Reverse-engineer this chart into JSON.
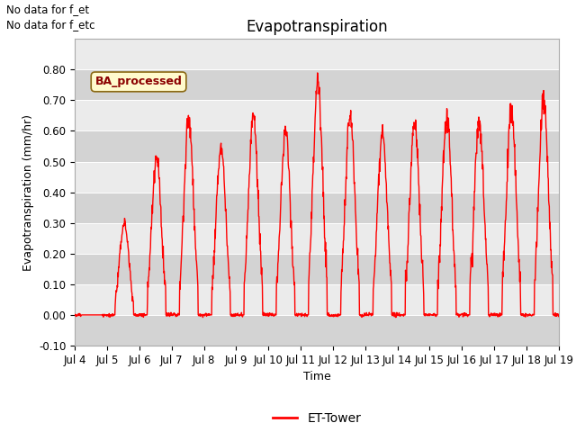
{
  "title": "Evapotranspiration",
  "xlabel": "Time",
  "ylabel": "Evapotranspiration (mm/hr)",
  "ylim": [
    -0.1,
    0.9
  ],
  "xlim": [
    0,
    360
  ],
  "yticks": [
    -0.1,
    0.0,
    0.1,
    0.2,
    0.3,
    0.4,
    0.5,
    0.6,
    0.7,
    0.8
  ],
  "xtick_labels": [
    "Jul 4",
    "Jul 5",
    "Jul 6",
    "Jul 7",
    "Jul 8",
    "Jul 9",
    "Jul 10",
    "Jul 11",
    "Jul 12",
    "Jul 13",
    "Jul 14",
    "Jul 15",
    "Jul 16",
    "Jul 17",
    "Jul 18",
    "Jul 19"
  ],
  "xtick_positions": [
    0,
    24,
    48,
    72,
    96,
    120,
    144,
    168,
    192,
    216,
    240,
    264,
    288,
    312,
    336,
    360
  ],
  "line_color": "#FF0000",
  "line_width": 1.0,
  "no_data_text1": "No data for f_et",
  "no_data_text2": "No data for f_etc",
  "ba_label": "BA_processed",
  "legend_label": "ET-Tower",
  "bg_color": "#FFFFFF",
  "plot_bg_color": "#EBEBEB",
  "band_color": "#D3D3D3",
  "title_fontsize": 12,
  "axis_label_fontsize": 9,
  "tick_fontsize": 8.5
}
